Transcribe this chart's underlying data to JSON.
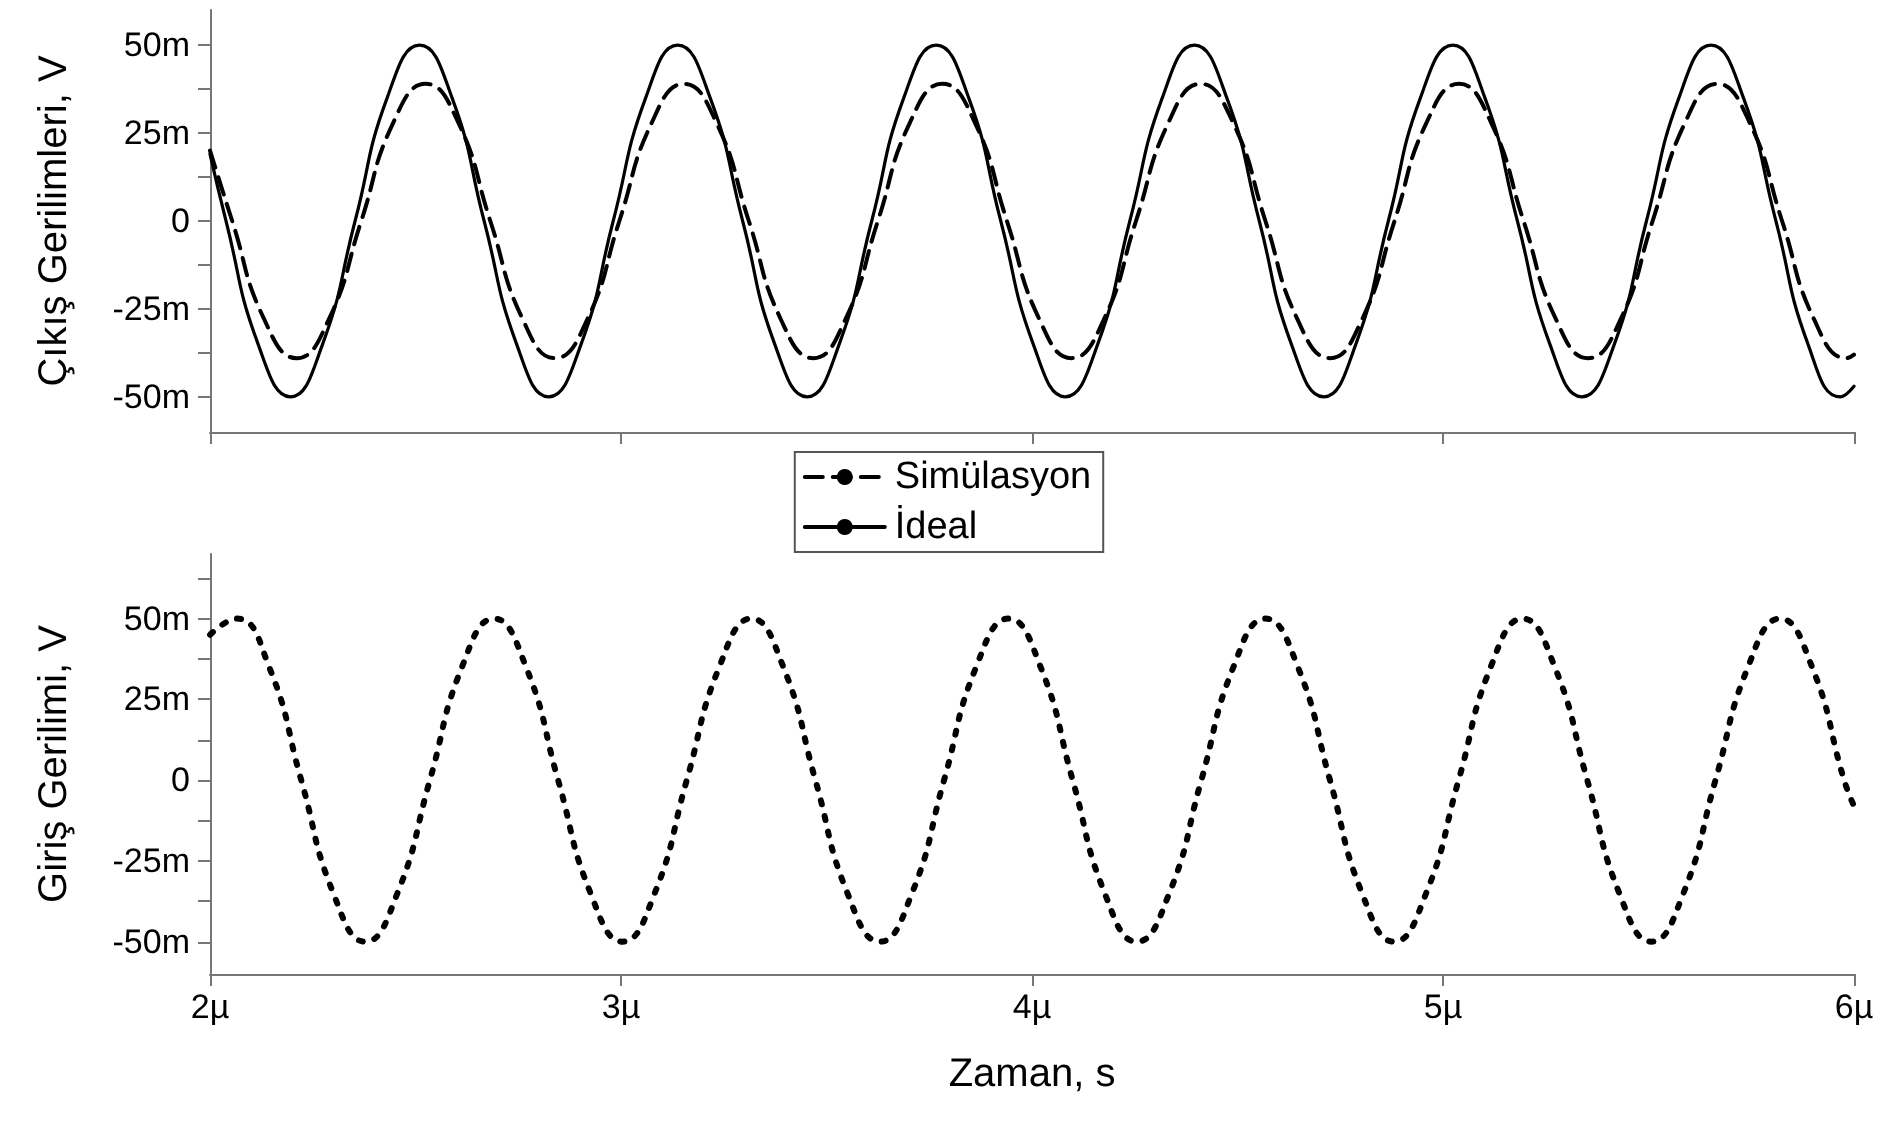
{
  "chart_data": [
    {
      "type": "line",
      "ylabel": "Çıkış Gerilimleri, V",
      "xlim": [
        2,
        6
      ],
      "ylim": [
        -60,
        60
      ],
      "tick_labels": "y",
      "grid": false,
      "legend": "bottom",
      "marker": "none",
      "yticks": [
        {
          "value": 50,
          "label": "50m"
        },
        {
          "value": 37.5,
          "label": null
        },
        {
          "value": 25,
          "label": "25m"
        },
        {
          "value": 12.5,
          "label": null
        },
        0,
        {
          "value": -12.5,
          "label": null
        },
        {
          "value": -25,
          "label": "-25m"
        },
        {
          "value": -37.5,
          "label": null
        },
        {
          "value": -50,
          "label": "-50m"
        }
      ],
      "xticks": [
        {
          "value": 2,
          "label": null
        },
        {
          "value": 3,
          "label": null
        },
        {
          "value": 4,
          "label": null
        },
        {
          "value": 5,
          "label": null
        },
        {
          "value": 6,
          "label": null
        }
      ],
      "series": [
        {
          "name": "Simülasyon",
          "color": "#000000",
          "line_style": "dashed",
          "x": [
            2.0,
            2.054,
            2.132,
            2.211,
            2.289,
            2.368,
            2.446,
            2.525,
            2.604,
            2.682,
            2.761,
            2.839,
            2.918,
            2.996,
            3.075,
            3.153,
            3.232,
            3.311,
            3.389,
            3.468,
            3.546,
            3.625,
            3.703,
            3.782,
            3.861,
            3.939,
            4.018,
            4.096,
            4.175,
            4.253,
            4.332,
            4.41,
            4.489,
            4.568,
            4.646,
            4.725,
            4.803,
            4.882,
            4.96,
            5.039,
            5.117,
            5.196,
            5.275,
            5.353,
            5.432,
            5.51,
            5.589,
            5.667,
            5.746,
            5.825,
            5.903,
            5.982,
            6.0
          ],
          "values": [
            20,
            0,
            -28,
            -39,
            -28,
            0,
            28,
            39,
            28,
            0,
            -28,
            -39,
            -28,
            0,
            28,
            39,
            28,
            0,
            -28,
            -39,
            -28,
            0,
            28,
            39,
            28,
            0,
            -28,
            -39,
            -28,
            0,
            28,
            39,
            28,
            0,
            -28,
            -39,
            -28,
            0,
            28,
            39,
            28,
            0,
            -28,
            -39,
            -28,
            0,
            28,
            39,
            28,
            0,
            -28,
            -39,
            -38
          ]
        },
        {
          "name": "İdeal",
          "color": "#000000",
          "line_style": "solid",
          "x": [
            2.0,
            2.039,
            2.117,
            2.196,
            2.274,
            2.353,
            2.431,
            2.51,
            2.589,
            2.667,
            2.746,
            2.824,
            2.903,
            2.981,
            3.06,
            3.138,
            3.217,
            3.296,
            3.374,
            3.453,
            3.531,
            3.61,
            3.688,
            3.767,
            3.846,
            3.924,
            4.003,
            4.081,
            4.16,
            4.238,
            4.317,
            4.395,
            4.474,
            4.553,
            4.631,
            4.71,
            4.788,
            4.867,
            4.945,
            5.024,
            5.102,
            5.181,
            5.26,
            5.338,
            5.417,
            5.495,
            5.574,
            5.652,
            5.731,
            5.81,
            5.888,
            5.967,
            6.0
          ],
          "values": [
            19,
            0,
            -35,
            -50,
            -35,
            0,
            35,
            50,
            35,
            0,
            -35,
            -50,
            -35,
            0,
            35,
            50,
            35,
            0,
            -35,
            -50,
            -35,
            0,
            35,
            50,
            35,
            0,
            -35,
            -50,
            -35,
            0,
            35,
            50,
            35,
            0,
            -35,
            -50,
            -35,
            0,
            35,
            50,
            35,
            0,
            -35,
            -50,
            -35,
            0,
            35,
            50,
            35,
            0,
            -35,
            -50,
            -47
          ]
        }
      ]
    },
    {
      "type": "line",
      "ylabel": "Giriş Gerilimi, V",
      "xlabel": "Zaman, s",
      "xlim": [
        2,
        6
      ],
      "ylim": [
        -60,
        70
      ],
      "grid": false,
      "marker": "none",
      "yticks": [
        {
          "value": 62.5,
          "label": null
        },
        {
          "value": 50,
          "label": "50m"
        },
        {
          "value": 37.5,
          "label": null
        },
        {
          "value": 25,
          "label": "25m"
        },
        {
          "value": 12.5,
          "label": null
        },
        0,
        {
          "value": -12.5,
          "label": null
        },
        {
          "value": -25,
          "label": "-25m"
        },
        {
          "value": -37.5,
          "label": null
        },
        {
          "value": -50,
          "label": "-50m"
        }
      ],
      "xticks": [
        {
          "value": 2,
          "label": "2µ"
        },
        {
          "value": 3,
          "label": "3µ"
        },
        {
          "value": 4,
          "label": "4µ"
        },
        {
          "value": 5,
          "label": "5µ"
        },
        {
          "value": 6,
          "label": "6µ"
        }
      ],
      "series": [
        {
          "color": "#000000",
          "line_style": "dotted",
          "x": [
            2.0,
            2.065,
            2.144,
            2.222,
            2.3,
            2.378,
            2.456,
            2.535,
            2.613,
            2.691,
            2.769,
            2.847,
            2.926,
            3.004,
            3.082,
            3.16,
            3.239,
            3.317,
            3.395,
            3.473,
            3.551,
            3.63,
            3.708,
            3.786,
            3.864,
            3.943,
            4.021,
            4.099,
            4.177,
            4.255,
            4.334,
            4.412,
            4.49,
            4.568,
            4.647,
            4.725,
            4.803,
            4.881,
            4.959,
            5.038,
            5.116,
            5.194,
            5.272,
            5.351,
            5.429,
            5.507,
            5.585,
            5.663,
            5.742,
            5.82,
            5.898,
            5.976,
            6.0
          ],
          "values": [
            45,
            50,
            35,
            0,
            -35,
            -50,
            -35,
            0,
            35,
            50,
            35,
            0,
            -35,
            -50,
            -35,
            0,
            35,
            50,
            35,
            0,
            -35,
            -50,
            -35,
            0,
            35,
            50,
            35,
            0,
            -35,
            -50,
            -35,
            0,
            35,
            50,
            35,
            0,
            -35,
            -50,
            -35,
            0,
            35,
            50,
            35,
            0,
            -35,
            -50,
            -35,
            0,
            35,
            50,
            35,
            0,
            -8
          ]
        }
      ]
    }
  ]
}
